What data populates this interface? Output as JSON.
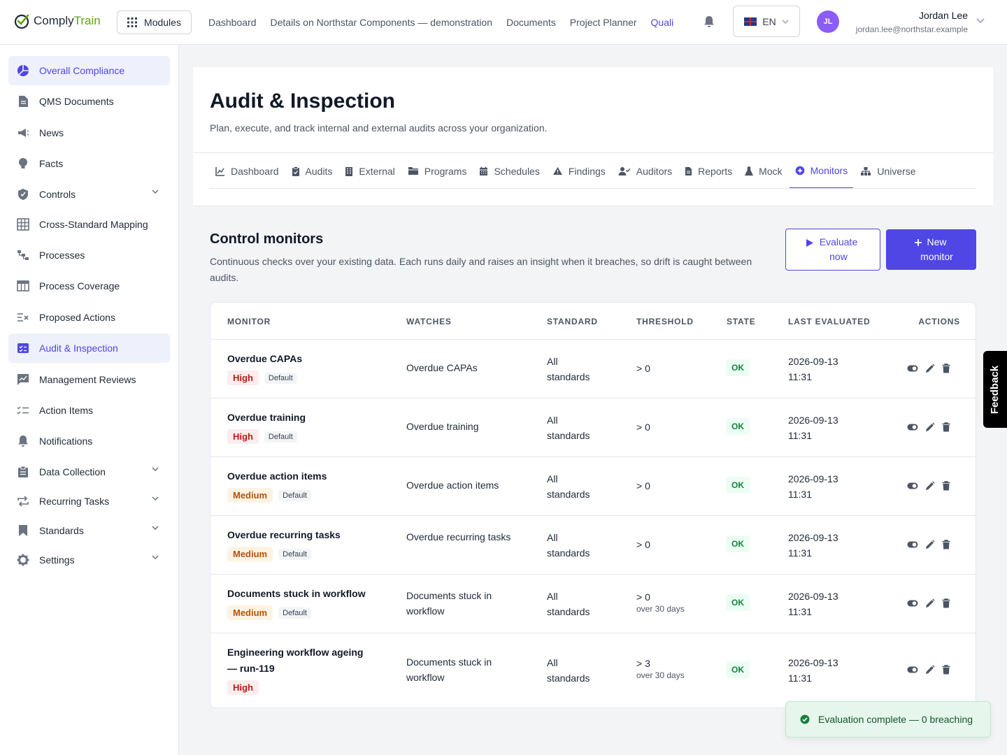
{
  "brand": {
    "part1": "Comply",
    "part2": "Train"
  },
  "topbar": {
    "modules_label": "Modules",
    "nav": [
      {
        "label": "Dashboard"
      },
      {
        "label": "Details on Northstar Components — demonstration"
      },
      {
        "label": "Documents"
      },
      {
        "label": "Project Planner"
      },
      {
        "label": "Quali"
      }
    ],
    "language": "EN",
    "user": {
      "initials": "JL",
      "name": "Jordan Lee",
      "email": "jordan.lee@northstar.example"
    }
  },
  "sidebar": {
    "items": [
      {
        "label": "Overall Compliance",
        "icon": "pie-chart-icon",
        "active": true
      },
      {
        "label": "QMS Documents",
        "icon": "document-icon"
      },
      {
        "label": "News",
        "icon": "megaphone-icon"
      },
      {
        "label": "Facts",
        "icon": "lightbulb-icon"
      },
      {
        "label": "Controls",
        "icon": "shield-icon",
        "expandable": true
      },
      {
        "label": "Cross-Standard Mapping",
        "icon": "grid-icon"
      },
      {
        "label": "Processes",
        "icon": "flow-icon"
      },
      {
        "label": "Process Coverage",
        "icon": "table-icon"
      },
      {
        "label": "Proposed Actions",
        "icon": "list-x-icon"
      },
      {
        "label": "Audit & Inspection",
        "icon": "checklist-icon",
        "active": true
      },
      {
        "label": "Management Reviews",
        "icon": "chat-chart-icon"
      },
      {
        "label": "Action Items",
        "icon": "checklist-lines-icon"
      },
      {
        "label": "Notifications",
        "icon": "bell-icon"
      },
      {
        "label": "Data Collection",
        "icon": "clipboard-icon",
        "expandable": true
      },
      {
        "label": "Recurring Tasks",
        "icon": "repeat-icon",
        "expandable": true
      },
      {
        "label": "Standards",
        "icon": "bookmark-icon",
        "expandable": true
      },
      {
        "label": "Settings",
        "icon": "gear-icon",
        "expandable": true
      }
    ]
  },
  "page": {
    "title": "Audit & Inspection",
    "subtitle": "Plan, execute, and track internal and external audits across your organization.",
    "tabs": [
      {
        "label": "Dashboard",
        "icon": "line-chart-icon"
      },
      {
        "label": "Audits",
        "icon": "clipboard-check-icon"
      },
      {
        "label": "External",
        "icon": "building-icon"
      },
      {
        "label": "Programs",
        "icon": "folder-icon"
      },
      {
        "label": "Schedules",
        "icon": "calendar-icon"
      },
      {
        "label": "Findings",
        "icon": "warning-icon"
      },
      {
        "label": "Auditors",
        "icon": "user-check-icon"
      },
      {
        "label": "Reports",
        "icon": "report-icon"
      },
      {
        "label": "Mock",
        "icon": "flask-icon"
      },
      {
        "label": "Monitors",
        "icon": "monitor-badge-icon",
        "active": true
      },
      {
        "label": "Universe",
        "icon": "hierarchy-icon"
      }
    ]
  },
  "monitors": {
    "title": "Control monitors",
    "description": "Continuous checks over your existing data. Each runs daily and raises an insight when it breaches, so drift is caught between audits.",
    "evaluate_label_1": "Evaluate",
    "evaluate_label_2": "now",
    "new_label_1": "New",
    "new_label_2": "monitor",
    "columns": [
      "MONITOR",
      "WATCHES",
      "STANDARD",
      "THRESHOLD",
      "STATE",
      "LAST EVALUATED",
      "ACTIONS"
    ],
    "rows": [
      {
        "name": "Overdue CAPAs",
        "severity": "High",
        "default": "Default",
        "watches": "Overdue CAPAs",
        "standard_1": "All",
        "standard_2": "standards",
        "threshold": "> 0",
        "threshold_sub": "",
        "state": "OK",
        "date": "2026-09-13",
        "time": "11:31"
      },
      {
        "name": "Overdue training",
        "severity": "High",
        "default": "Default",
        "watches": "Overdue training",
        "standard_1": "All",
        "standard_2": "standards",
        "threshold": "> 0",
        "threshold_sub": "",
        "state": "OK",
        "date": "2026-09-13",
        "time": "11:31"
      },
      {
        "name": "Overdue action items",
        "severity": "Medium",
        "default": "Default",
        "watches": "Overdue action items",
        "standard_1": "All",
        "standard_2": "standards",
        "threshold": "> 0",
        "threshold_sub": "",
        "state": "OK",
        "date": "2026-09-13",
        "time": "11:31"
      },
      {
        "name": "Overdue recurring tasks",
        "severity": "Medium",
        "default": "Default",
        "watches": "Overdue recurring tasks",
        "standard_1": "All",
        "standard_2": "standards",
        "threshold": "> 0",
        "threshold_sub": "",
        "state": "OK",
        "date": "2026-09-13",
        "time": "11:31"
      },
      {
        "name": "Documents stuck in workflow",
        "severity": "Medium",
        "default": "Default",
        "watches": "Documents stuck in workflow",
        "standard_1": "All",
        "standard_2": "standards",
        "threshold": "> 0",
        "threshold_sub": "over 30 days",
        "state": "OK",
        "date": "2026-09-13",
        "time": "11:31"
      },
      {
        "name": "Engineering workflow ageing — run-119",
        "severity": "High",
        "default": "",
        "watches": "Documents stuck in workflow",
        "standard_1": "All",
        "standard_2": "standards",
        "threshold": "> 3",
        "threshold_sub": "over 30 days",
        "state": "OK",
        "date": "2026-09-13",
        "time": "11:31"
      }
    ]
  },
  "feedback_label": "Feedback",
  "toast": {
    "message": "Evaluation complete — 0 breaching"
  },
  "colors": {
    "accent": "#4f46e5",
    "ok": "#15803d",
    "high": "#b91c1c",
    "medium": "#b45309"
  }
}
